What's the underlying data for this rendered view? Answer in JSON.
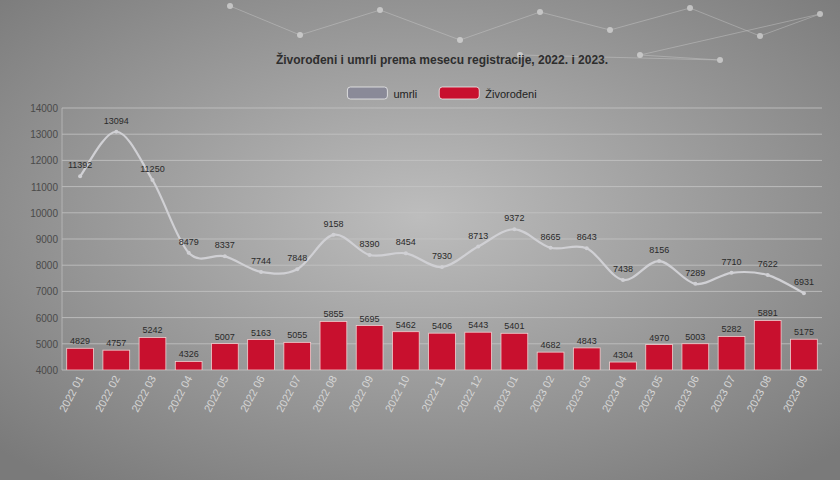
{
  "chart_data": {
    "type": "bar",
    "title": "Živorođeni i umrli  prema mesecu registracije, 2022. i 2023.",
    "categories": [
      "2022 01",
      "2022 02",
      "2022 03",
      "2022 04",
      "2022 05",
      "2022 06",
      "2022 07",
      "2022 08",
      "2022 09",
      "2022 10",
      "2022 11",
      "2022 12",
      "2023 01",
      "2023 02",
      "2023 03",
      "2023 04",
      "2023 05",
      "2023 06",
      "2023 07",
      "2023 08",
      "2023 09"
    ],
    "series": [
      {
        "name": "umrli",
        "type": "line",
        "color": "#d0d0d4",
        "values": [
          11392,
          13094,
          11250,
          8479,
          8337,
          7744,
          7848,
          9158,
          8390,
          8454,
          7930,
          8713,
          9372,
          8665,
          8643,
          7438,
          8156,
          7289,
          7710,
          7622,
          6931
        ]
      },
      {
        "name": "Živorođeni",
        "type": "bar",
        "color": "#c8102e",
        "values": [
          4829,
          4757,
          5242,
          4326,
          5007,
          5163,
          5055,
          5855,
          5695,
          5462,
          5406,
          5443,
          5401,
          4682,
          4843,
          4304,
          4970,
          5003,
          5282,
          5891,
          5175
        ]
      }
    ],
    "ylim": [
      4000,
      14000
    ],
    "yticks": [
      4000,
      5000,
      6000,
      7000,
      8000,
      9000,
      10000,
      11000,
      12000,
      13000,
      14000
    ],
    "grid": true,
    "legend": "top",
    "data_labels": true
  }
}
